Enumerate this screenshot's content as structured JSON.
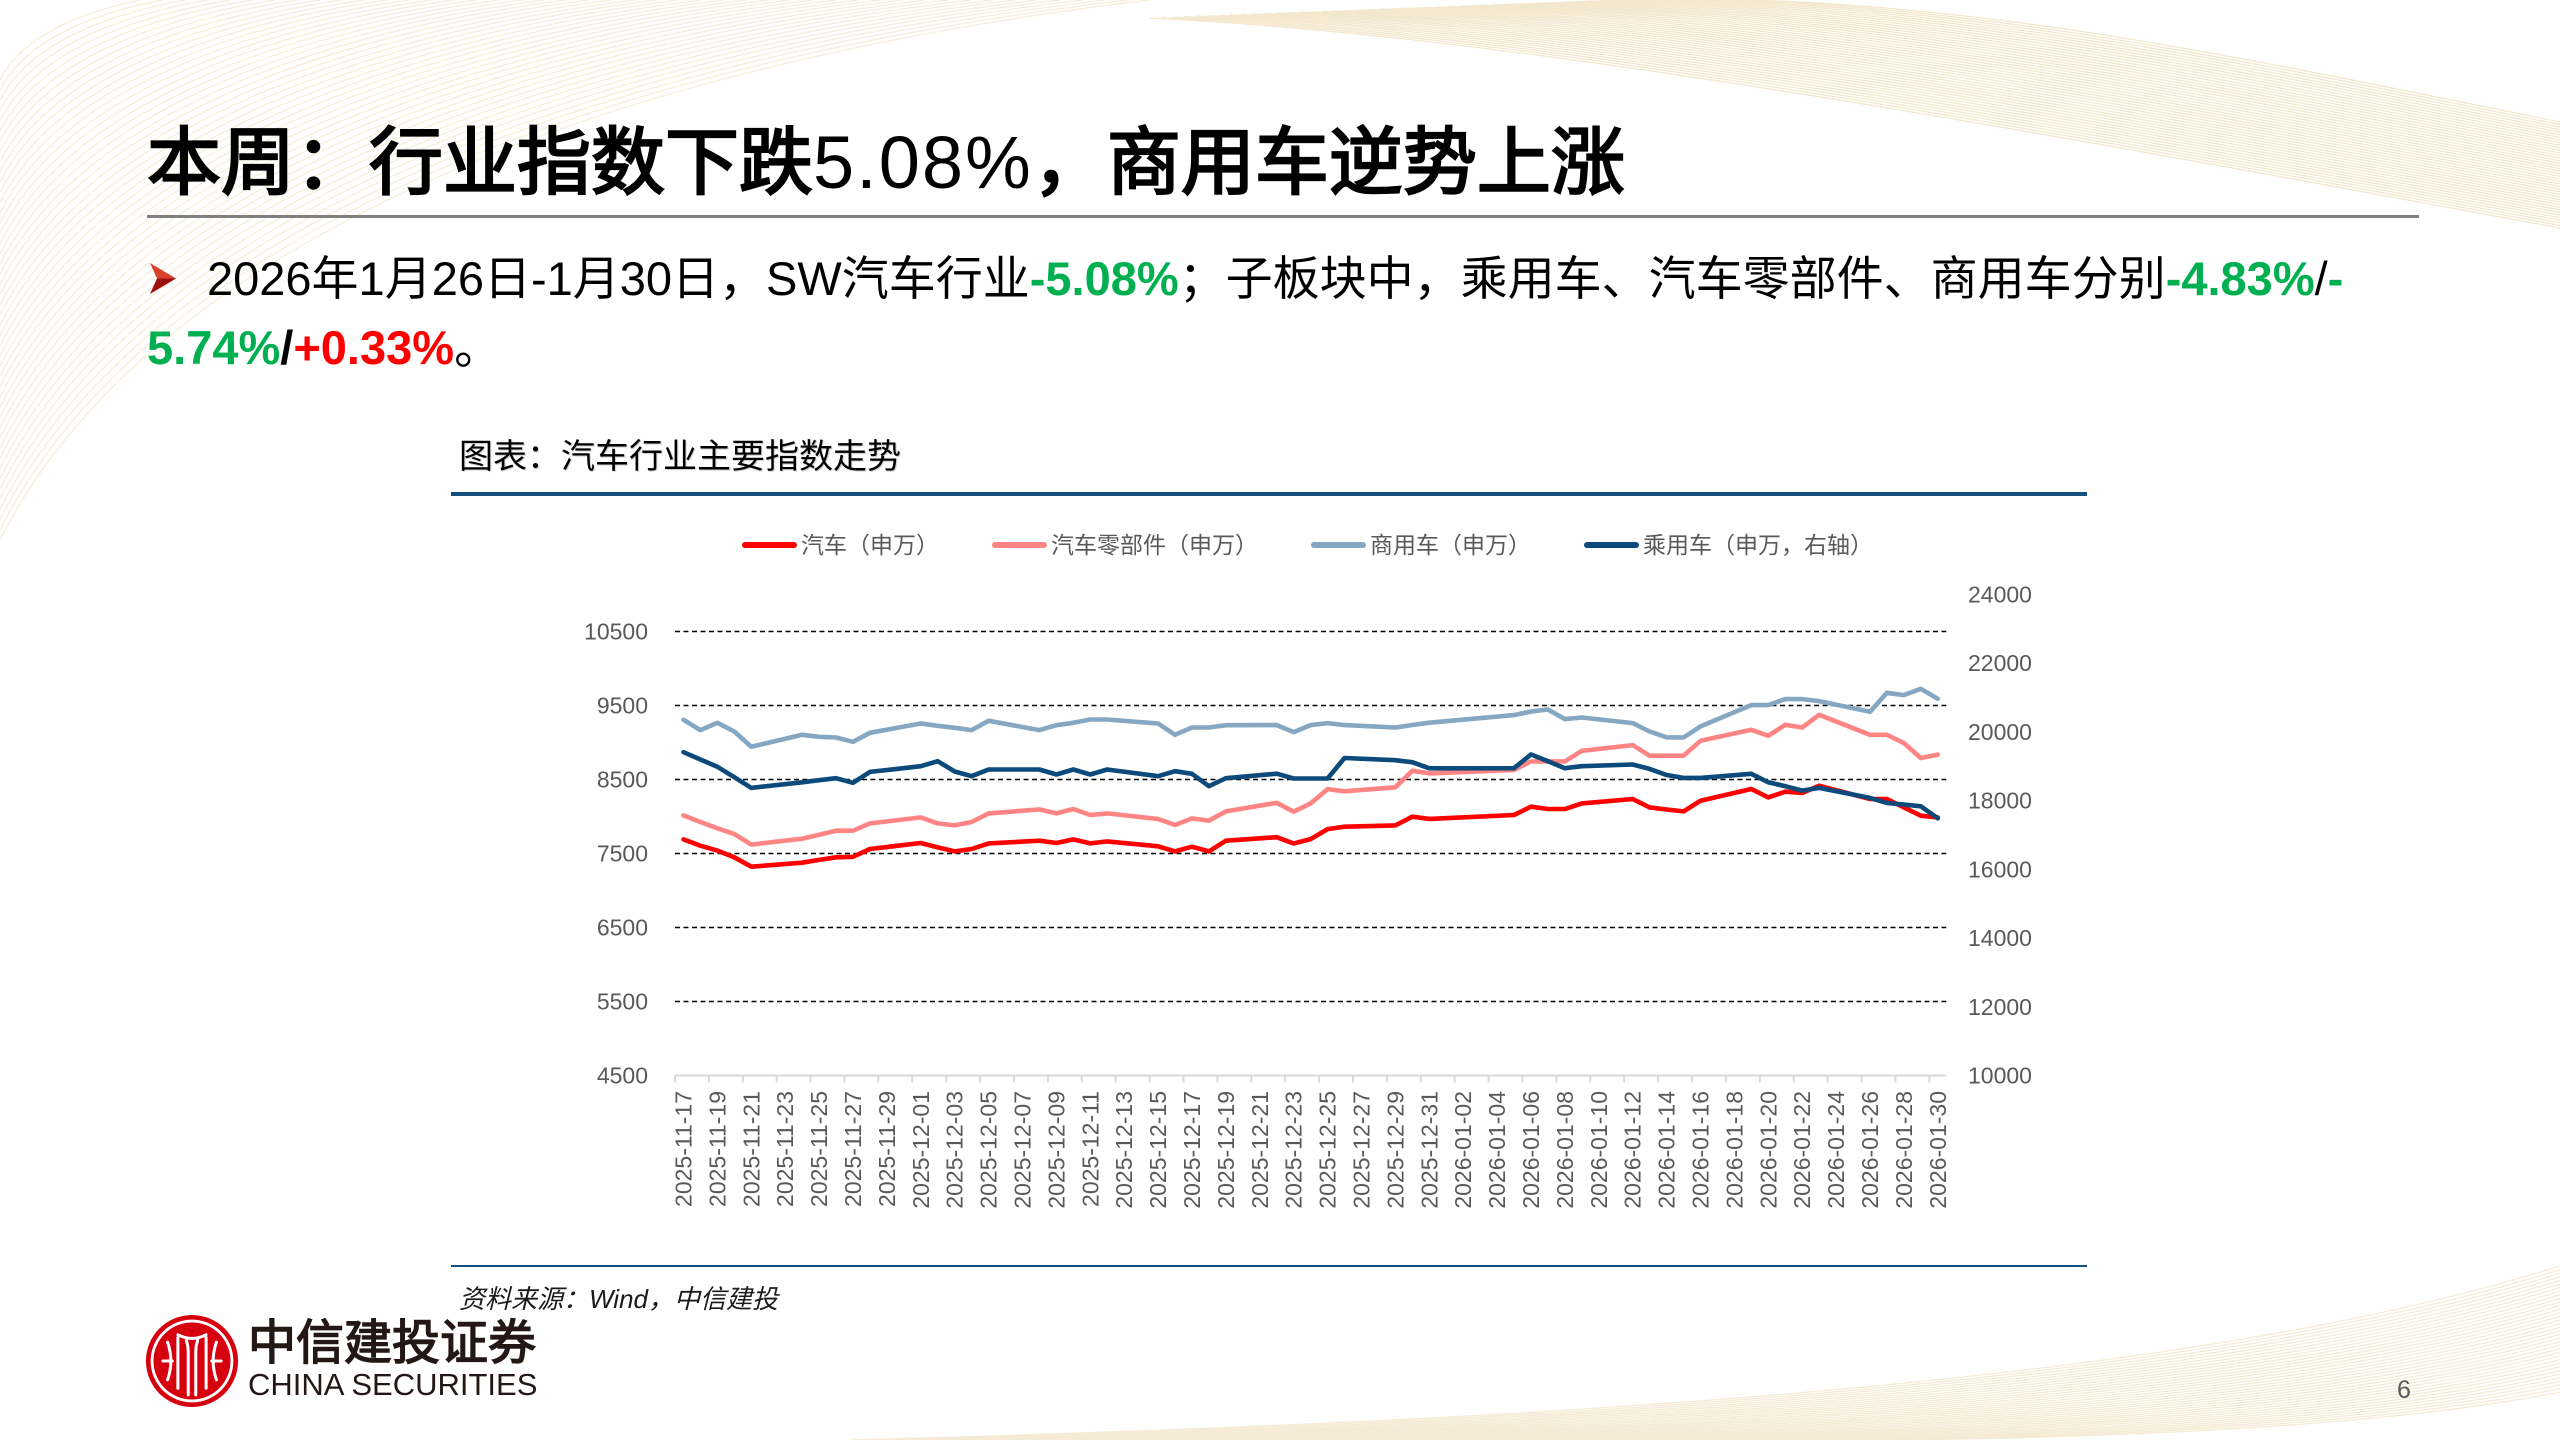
{
  "header": {
    "title_parts": [
      "本周：行业指数下跌",
      "5.08%",
      "，商用车逆势上涨"
    ]
  },
  "colors": {
    "down": "#00B050",
    "up": "#FF0000",
    "title_rule": "#808080",
    "panel_rule": "#134F7F",
    "axis_text": "#595959",
    "brand_red": "#D7000F"
  },
  "summary": {
    "bullet_icon": "arrow-bullet-icon",
    "line1": [
      {
        "text": "2026年1月26日-1月30日，SW汽车行业",
        "tone": "normal"
      },
      {
        "text": "-5.08%",
        "tone": "down"
      },
      {
        "text": "；子板块中，乘用车、汽车零部件、商用车分别",
        "tone": "normal"
      },
      {
        "text": "-4.83%",
        "tone": "down"
      },
      {
        "text": "/",
        "tone": "normal"
      },
      {
        "text": "-",
        "tone": "down"
      }
    ],
    "line2": [
      {
        "text": "5.74%",
        "tone": "down"
      },
      {
        "text": "/",
        "tone": "strong"
      },
      {
        "text": "+0.33%",
        "tone": "up"
      },
      {
        "text": "。",
        "tone": "normal"
      }
    ]
  },
  "chart_panel": {
    "title": "图表：汽车行业主要指数走势",
    "source": "资料来源：Wind，中信建投"
  },
  "chart_data": {
    "type": "line",
    "title": "图表：汽车行业主要指数走势",
    "xlabel": "",
    "ylabel": "",
    "y2label": "",
    "ylim": [
      4500,
      11000
    ],
    "yticks": [
      4500,
      5500,
      6500,
      7500,
      8500,
      9500,
      10500
    ],
    "y2lim": [
      10000,
      24000
    ],
    "y2ticks": [
      10000,
      12000,
      14000,
      16000,
      18000,
      20000,
      22000,
      24000
    ],
    "grid": true,
    "grid_style": "dashed",
    "legend_position": "top",
    "x": [
      "2025-11-17",
      "2025-11-18",
      "2025-11-19",
      "2025-11-20",
      "2025-11-21",
      "2025-11-24",
      "2025-11-25",
      "2025-11-26",
      "2025-11-27",
      "2025-11-28",
      "2025-12-01",
      "2025-12-02",
      "2025-12-03",
      "2025-12-04",
      "2025-12-05",
      "2025-12-08",
      "2025-12-09",
      "2025-12-10",
      "2025-12-11",
      "2025-12-12",
      "2025-12-15",
      "2025-12-16",
      "2025-12-17",
      "2025-12-18",
      "2025-12-19",
      "2025-12-22",
      "2025-12-23",
      "2025-12-24",
      "2025-12-25",
      "2025-12-26",
      "2025-12-29",
      "2025-12-30",
      "2025-12-31",
      "2026-01-05",
      "2026-01-06",
      "2026-01-07",
      "2026-01-08",
      "2026-01-09",
      "2026-01-12",
      "2026-01-13",
      "2026-01-14",
      "2026-01-15",
      "2026-01-16",
      "2026-01-19",
      "2026-01-20",
      "2026-01-21",
      "2026-01-22",
      "2026-01-23",
      "2026-01-26",
      "2026-01-27",
      "2026-01-28",
      "2026-01-29",
      "2026-01-30"
    ],
    "xtick_labels": [
      "2025-11-17",
      "2025-11-19",
      "2025-11-21",
      "2025-11-23",
      "2025-11-25",
      "2025-11-27",
      "2025-11-29",
      "2025-12-01",
      "2025-12-03",
      "2025-12-05",
      "2025-12-07",
      "2025-12-09",
      "2025-12-11",
      "2025-12-13",
      "2025-12-15",
      "2025-12-17",
      "2025-12-19",
      "2025-12-21",
      "2025-12-23",
      "2025-12-25",
      "2025-12-27",
      "2025-12-29",
      "2025-12-31",
      "2026-01-02",
      "2026-01-04",
      "2026-01-06",
      "2026-01-08",
      "2026-01-10",
      "2026-01-12",
      "2026-01-14",
      "2026-01-16",
      "2026-01-18",
      "2026-01-20",
      "2026-01-22",
      "2026-01-24",
      "2026-01-26",
      "2026-01-28",
      "2026-01-30"
    ],
    "series": [
      {
        "name": "汽车（申万）",
        "axis": "left",
        "color": "#FF0000",
        "values": [
          7691,
          7606,
          7539,
          7448,
          7322,
          7376,
          7413,
          7448,
          7455,
          7561,
          7642,
          7583,
          7529,
          7561,
          7637,
          7673,
          7642,
          7691,
          7637,
          7664,
          7597,
          7529,
          7592,
          7529,
          7673,
          7720,
          7635,
          7695,
          7830,
          7862,
          7880,
          7997,
          7968,
          8020,
          8132,
          8101,
          8101,
          8177,
          8236,
          8123,
          8095,
          8069,
          8213,
          8371,
          8258,
          8335,
          8317,
          8416,
          8236,
          8236,
          8123,
          8011,
          7988
        ]
      },
      {
        "name": "汽车零部件（申万）",
        "axis": "left",
        "color": "#FF8585",
        "values": [
          8015,
          7926,
          7840,
          7764,
          7620,
          7700,
          7754,
          7808,
          7808,
          7907,
          7988,
          7907,
          7880,
          7926,
          8042,
          8096,
          8042,
          8101,
          8020,
          8042,
          7966,
          7885,
          7975,
          7943,
          8069,
          8185,
          8065,
          8177,
          8370,
          8340,
          8395,
          8618,
          8582,
          8628,
          8744,
          8744,
          8744,
          8888,
          8965,
          8821,
          8821,
          8821,
          9023,
          9172,
          9091,
          9239,
          9203,
          9374,
          9104,
          9104,
          8992,
          8790,
          8836
        ]
      },
      {
        "name": "商用车（申万）",
        "axis": "left",
        "color": "#85A7C1",
        "values": [
          9307,
          9168,
          9266,
          9149,
          8942,
          9104,
          9077,
          9068,
          9010,
          9131,
          9257,
          9226,
          9199,
          9168,
          9293,
          9167,
          9234,
          9266,
          9311,
          9311,
          9257,
          9104,
          9203,
          9203,
          9234,
          9235,
          9140,
          9235,
          9262,
          9235,
          9203,
          9237,
          9268,
          9370,
          9419,
          9446,
          9316,
          9338,
          9262,
          9149,
          9070,
          9068,
          9217,
          9505,
          9505,
          9586,
          9586,
          9560,
          9415,
          9671,
          9640,
          9725,
          9590
        ]
      },
      {
        "name": "乘用车（申万，右轴）",
        "axis": "right",
        "color": "#0B4A7A",
        "values": [
          19410,
          19197,
          18984,
          18681,
          18372,
          18535,
          18594,
          18652,
          18518,
          18838,
          19002,
          19147,
          18847,
          18711,
          18905,
          18905,
          18760,
          18905,
          18760,
          18905,
          18711,
          18856,
          18780,
          18419,
          18652,
          18785,
          18645,
          18645,
          18645,
          19240,
          19177,
          19120,
          18940,
          18943,
          19343,
          19148,
          18943,
          19002,
          19051,
          18925,
          18745,
          18663,
          18663,
          18780,
          18535,
          18419,
          18293,
          18372,
          18080,
          17935,
          17885,
          17836,
          17485
        ]
      }
    ],
    "source": "资料来源：Wind，中信建投"
  },
  "footer": {
    "brand_cn": "中信建投证券",
    "brand_en": "CHINA SECURITIES",
    "logo_icon": "citic-logo-icon",
    "page_number": "6"
  }
}
